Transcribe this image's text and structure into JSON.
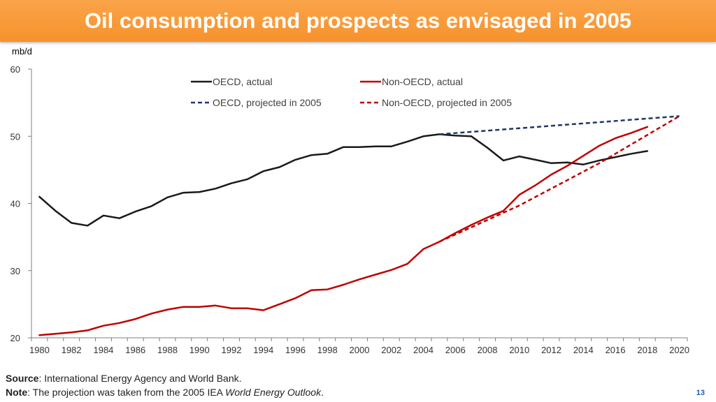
{
  "header": {
    "title": "Oil consumption and prospects as envisaged in 2005"
  },
  "chart_data": {
    "type": "line",
    "title": "Oil consumption and prospects as envisaged in 2005",
    "ylabel": "mb/d",
    "xlabel": "",
    "ylim": [
      20,
      60
    ],
    "xlim": [
      1979.5,
      2020.5
    ],
    "yticks": [
      "20",
      "30",
      "40",
      "50",
      "60"
    ],
    "xticks": [
      "1980",
      "1982",
      "1984",
      "1986",
      "1988",
      "1990",
      "1992",
      "1994",
      "1996",
      "1998",
      "2000",
      "2002",
      "2004",
      "2006",
      "2008",
      "2010",
      "2012",
      "2014",
      "2016",
      "2018",
      "2020"
    ],
    "legend": "top-center",
    "series": [
      {
        "name": "OECD, actual",
        "color": "#1a1a1a",
        "dash": "solid",
        "x": [
          1980,
          1981,
          1982,
          1983,
          1984,
          1985,
          1986,
          1987,
          1988,
          1989,
          1990,
          1991,
          1992,
          1993,
          1994,
          1995,
          1996,
          1997,
          1998,
          1999,
          2000,
          2001,
          2002,
          2003,
          2004,
          2005,
          2006,
          2007,
          2008,
          2009,
          2010,
          2011,
          2012,
          2013,
          2014,
          2015,
          2016,
          2017,
          2018
        ],
        "y": [
          41.0,
          38.9,
          37.1,
          36.7,
          38.2,
          37.8,
          38.8,
          39.6,
          40.9,
          41.6,
          41.7,
          42.2,
          43.0,
          43.6,
          44.8,
          45.4,
          46.5,
          47.2,
          47.4,
          48.4,
          48.4,
          48.5,
          48.5,
          49.2,
          50.0,
          50.3,
          50.1,
          50.0,
          48.3,
          46.4,
          47.0,
          46.5,
          46.0,
          46.1,
          45.8,
          46.4,
          46.9,
          47.4,
          47.8
        ]
      },
      {
        "name": "Non-OECD, actual",
        "color": "#c00000",
        "dash": "solid",
        "x": [
          1980,
          1981,
          1982,
          1983,
          1984,
          1985,
          1986,
          1987,
          1988,
          1989,
          1990,
          1991,
          1992,
          1993,
          1994,
          1995,
          1996,
          1997,
          1998,
          1999,
          2000,
          2001,
          2002,
          2003,
          2004,
          2005,
          2006,
          2007,
          2008,
          2009,
          2010,
          2011,
          2012,
          2013,
          2014,
          2015,
          2016,
          2017,
          2018
        ],
        "y": [
          20.4,
          20.6,
          20.8,
          21.1,
          21.8,
          22.2,
          22.8,
          23.6,
          24.2,
          24.6,
          24.6,
          24.8,
          24.4,
          24.4,
          24.1,
          25.0,
          25.9,
          27.1,
          27.2,
          27.9,
          28.7,
          29.4,
          30.1,
          31.0,
          33.2,
          34.3,
          35.6,
          36.8,
          37.9,
          38.9,
          41.3,
          42.7,
          44.3,
          45.6,
          47.1,
          48.6,
          49.7,
          50.5,
          51.4
        ]
      },
      {
        "name": "OECD, projected in 2005",
        "color": "#1f3864",
        "dash": "dashed",
        "x": [
          2005,
          2020
        ],
        "y": [
          50.3,
          53.0
        ]
      },
      {
        "name": "Non-OECD, projected in 2005",
        "color": "#c00000",
        "dash": "dashed",
        "x": [
          2005,
          2010,
          2015,
          2020
        ],
        "y": [
          34.3,
          39.7,
          46.0,
          53.0
        ]
      }
    ]
  },
  "footer": {
    "source_label": "Source",
    "source_text": ": International Energy Agency and World Bank.",
    "note_label": "Note",
    "note_text_before": ": The projection was taken from the 2005 IEA ",
    "note_italic": "World Energy Outlook",
    "note_text_after": "."
  },
  "page_number": "13"
}
